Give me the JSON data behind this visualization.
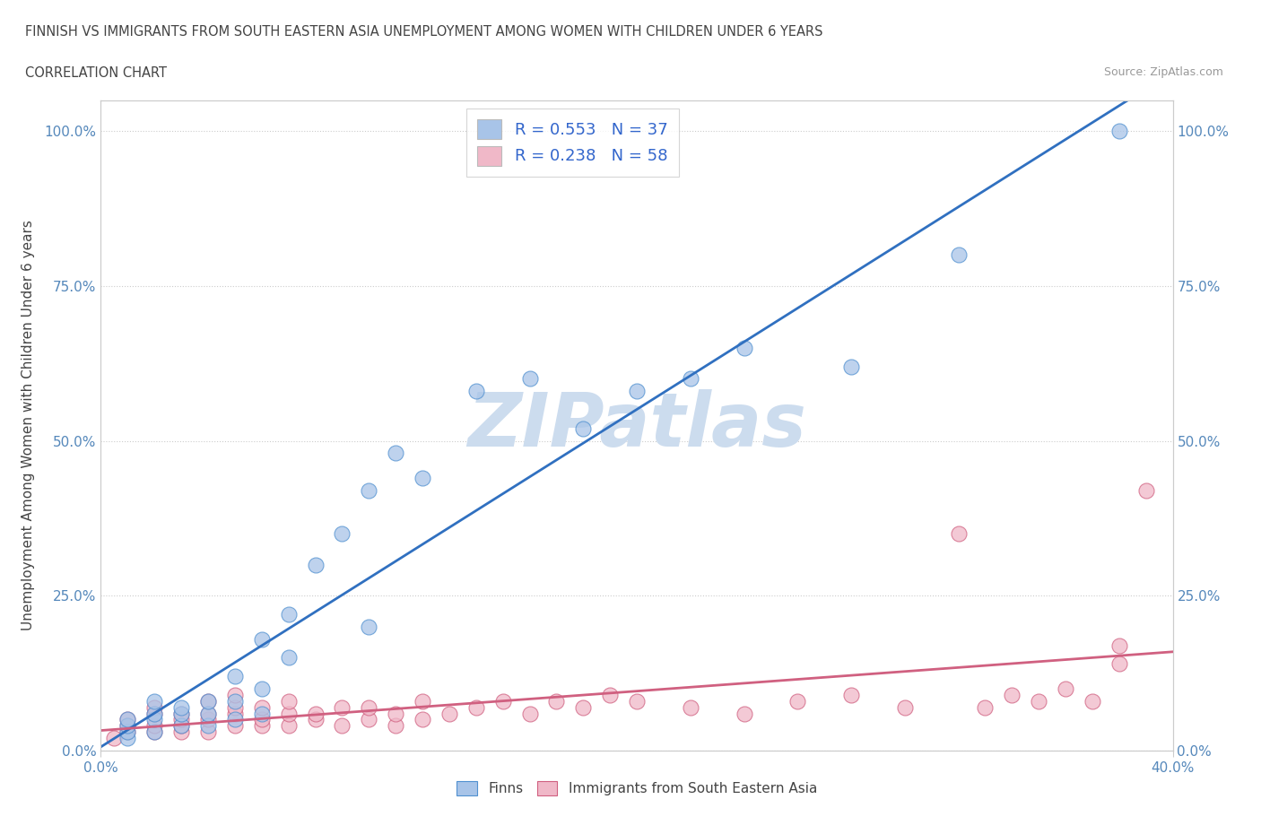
{
  "title_line1": "FINNISH VS IMMIGRANTS FROM SOUTH EASTERN ASIA UNEMPLOYMENT AMONG WOMEN WITH CHILDREN UNDER 6 YEARS",
  "title_line2": "CORRELATION CHART",
  "source": "Source: ZipAtlas.com",
  "ylabel": "Unemployment Among Women with Children Under 6 years",
  "bottom_legend": [
    {
      "label": "Finns",
      "color": "#a8c4e8"
    },
    {
      "label": "Immigrants from South Eastern Asia",
      "color": "#f0a8b8"
    }
  ],
  "finns_x": [
    0.01,
    0.01,
    0.01,
    0.01,
    0.02,
    0.02,
    0.02,
    0.02,
    0.03,
    0.03,
    0.03,
    0.04,
    0.04,
    0.04,
    0.05,
    0.05,
    0.05,
    0.06,
    0.06,
    0.06,
    0.07,
    0.07,
    0.08,
    0.09,
    0.1,
    0.1,
    0.11,
    0.12,
    0.14,
    0.16,
    0.18,
    0.2,
    0.22,
    0.24,
    0.28,
    0.32,
    0.38
  ],
  "finns_y": [
    0.02,
    0.03,
    0.04,
    0.05,
    0.03,
    0.05,
    0.06,
    0.08,
    0.04,
    0.06,
    0.07,
    0.04,
    0.06,
    0.08,
    0.05,
    0.08,
    0.12,
    0.06,
    0.1,
    0.18,
    0.15,
    0.22,
    0.3,
    0.35,
    0.42,
    0.2,
    0.48,
    0.44,
    0.58,
    0.6,
    0.52,
    0.58,
    0.6,
    0.65,
    0.62,
    0.8,
    1.0
  ],
  "immigrants_x": [
    0.005,
    0.01,
    0.01,
    0.01,
    0.02,
    0.02,
    0.02,
    0.02,
    0.03,
    0.03,
    0.03,
    0.03,
    0.04,
    0.04,
    0.04,
    0.04,
    0.05,
    0.05,
    0.05,
    0.05,
    0.06,
    0.06,
    0.06,
    0.07,
    0.07,
    0.07,
    0.08,
    0.08,
    0.09,
    0.09,
    0.1,
    0.1,
    0.11,
    0.11,
    0.12,
    0.12,
    0.13,
    0.14,
    0.15,
    0.16,
    0.17,
    0.18,
    0.19,
    0.2,
    0.22,
    0.24,
    0.26,
    0.28,
    0.3,
    0.32,
    0.33,
    0.34,
    0.35,
    0.36,
    0.37,
    0.38,
    0.38,
    0.39
  ],
  "immigrants_y": [
    0.02,
    0.03,
    0.04,
    0.05,
    0.03,
    0.04,
    0.06,
    0.07,
    0.03,
    0.04,
    0.05,
    0.06,
    0.03,
    0.05,
    0.06,
    0.08,
    0.04,
    0.06,
    0.07,
    0.09,
    0.04,
    0.05,
    0.07,
    0.04,
    0.06,
    0.08,
    0.05,
    0.06,
    0.04,
    0.07,
    0.05,
    0.07,
    0.04,
    0.06,
    0.05,
    0.08,
    0.06,
    0.07,
    0.08,
    0.06,
    0.08,
    0.07,
    0.09,
    0.08,
    0.07,
    0.06,
    0.08,
    0.09,
    0.07,
    0.35,
    0.07,
    0.09,
    0.08,
    0.1,
    0.08,
    0.14,
    0.17,
    0.42
  ],
  "finns_scatter_color": "#a8c4e8",
  "finns_scatter_edge": "#5090d0",
  "immigrants_scatter_color": "#f0b8c8",
  "immigrants_scatter_edge": "#d06080",
  "finns_line_color": "#3070c0",
  "immigrants_line_color": "#d06080",
  "background_color": "#ffffff",
  "watermark_text": "ZIPatlas",
  "watermark_color": "#ccdcee",
  "xlim": [
    0.0,
    0.4
  ],
  "ylim": [
    0.0,
    1.05
  ],
  "grid_color": "#cccccc",
  "finn_R": 0.553,
  "finn_N": 37,
  "immigrant_R": 0.238,
  "immigrant_N": 58,
  "y_ticks": [
    0.0,
    0.25,
    0.5,
    0.75,
    1.0
  ],
  "x_ticks": [
    0.0,
    0.4
  ],
  "tick_color": "#5588bb",
  "title_color": "#444444",
  "legend_text_color": "#3366cc"
}
